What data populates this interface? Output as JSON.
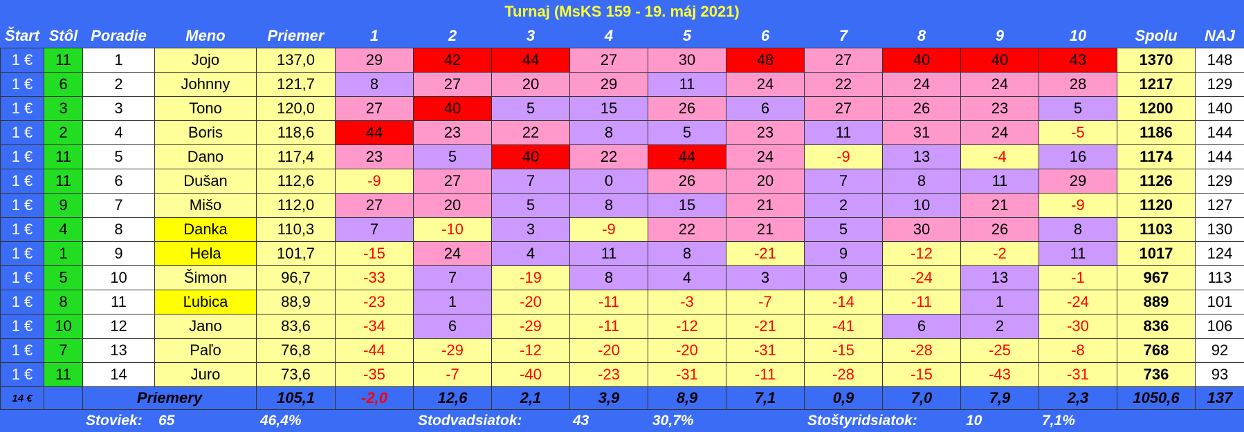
{
  "title": "Turnaj (MsKS 159 - 19. máj 2021)",
  "header": [
    "Štart",
    "Stôl",
    "Poradie",
    "Meno",
    "Priemer",
    "1",
    "2",
    "3",
    "4",
    "5",
    "6",
    "7",
    "8",
    "9",
    "10",
    "Spolu",
    "NAJ"
  ],
  "rows": [
    [
      "1 €",
      11,
      1,
      "Jojo",
      "137,0",
      29,
      42,
      44,
      27,
      30,
      48,
      27,
      40,
      40,
      43,
      1370,
      148
    ],
    [
      "1 €",
      6,
      2,
      "Johnny",
      "121,7",
      8,
      27,
      20,
      29,
      11,
      24,
      22,
      24,
      24,
      28,
      1217,
      129
    ],
    [
      "1 €",
      3,
      3,
      "Tono",
      "120,0",
      27,
      40,
      5,
      15,
      26,
      6,
      27,
      26,
      23,
      5,
      1200,
      140
    ],
    [
      "1 €",
      2,
      4,
      "Boris",
      "118,6",
      44,
      23,
      22,
      8,
      5,
      23,
      11,
      31,
      24,
      -5,
      1186,
      144
    ],
    [
      "1 €",
      11,
      5,
      "Dano",
      "117,4",
      23,
      5,
      40,
      22,
      44,
      24,
      -9,
      13,
      -4,
      16,
      1174,
      144
    ],
    [
      "1 €",
      11,
      6,
      "Dušan",
      "112,6",
      -9,
      27,
      7,
      0,
      26,
      20,
      7,
      8,
      11,
      29,
      1126,
      129
    ],
    [
      "1 €",
      9,
      7,
      "Mišo",
      "112,0",
      27,
      20,
      5,
      8,
      15,
      21,
      2,
      10,
      21,
      -9,
      1120,
      127
    ],
    [
      "1 €",
      4,
      8,
      "Danka",
      "110,3",
      7,
      -10,
      3,
      -9,
      22,
      21,
      5,
      30,
      26,
      8,
      1103,
      130
    ],
    [
      "1 €",
      1,
      9,
      "Hela",
      "101,7",
      -15,
      24,
      4,
      11,
      8,
      -21,
      9,
      -12,
      -2,
      11,
      1017,
      124
    ],
    [
      "1 €",
      5,
      10,
      "Šimon",
      "96,7",
      -33,
      7,
      -19,
      8,
      4,
      3,
      9,
      -24,
      13,
      -1,
      967,
      113
    ],
    [
      "1 €",
      8,
      11,
      "Ľubica",
      "88,9",
      -23,
      1,
      -20,
      -11,
      -3,
      -7,
      -14,
      -11,
      1,
      -24,
      889,
      101
    ],
    [
      "1 €",
      10,
      12,
      "Jano",
      "83,6",
      -34,
      6,
      -29,
      -11,
      -12,
      -21,
      -41,
      6,
      2,
      -30,
      836,
      106
    ],
    [
      "1 €",
      7,
      13,
      "Paľo",
      "76,8",
      -44,
      -29,
      -12,
      -20,
      -20,
      -31,
      -15,
      -28,
      -25,
      -8,
      768,
      92
    ],
    [
      "1 €",
      11,
      14,
      "Juro",
      "73,6",
      -35,
      -7,
      -40,
      -23,
      -31,
      -11,
      -28,
      -15,
      -43,
      -31,
      736,
      93
    ]
  ],
  "name_fills": [
    "#ffff99",
    "#ffff99",
    "#ffff99",
    "#ffff99",
    "#ffff99",
    "#ffff99",
    "#ffff99",
    "#ffff00",
    "#ffff00",
    "#ffff99",
    "#ffff00",
    "#ffff99",
    "#ffff99",
    "#ffff99"
  ],
  "averages": {
    "start": "14 €",
    "label": "Priemery",
    "priemer": "105,1",
    "scores": [
      "-2,0",
      "12,6",
      "2,1",
      "3,9",
      "8,9",
      "7,1",
      "0,9",
      "7,0",
      "7,9",
      "2,3"
    ],
    "spolu": "1050,6",
    "naj": 137
  },
  "footer": [
    "Stoviek:",
    "65",
    "46,4%",
    "Stodvadsiatok:",
    "43",
    "30,7%",
    "Stoštyridsiatok:",
    "10",
    "7,1%"
  ]
}
